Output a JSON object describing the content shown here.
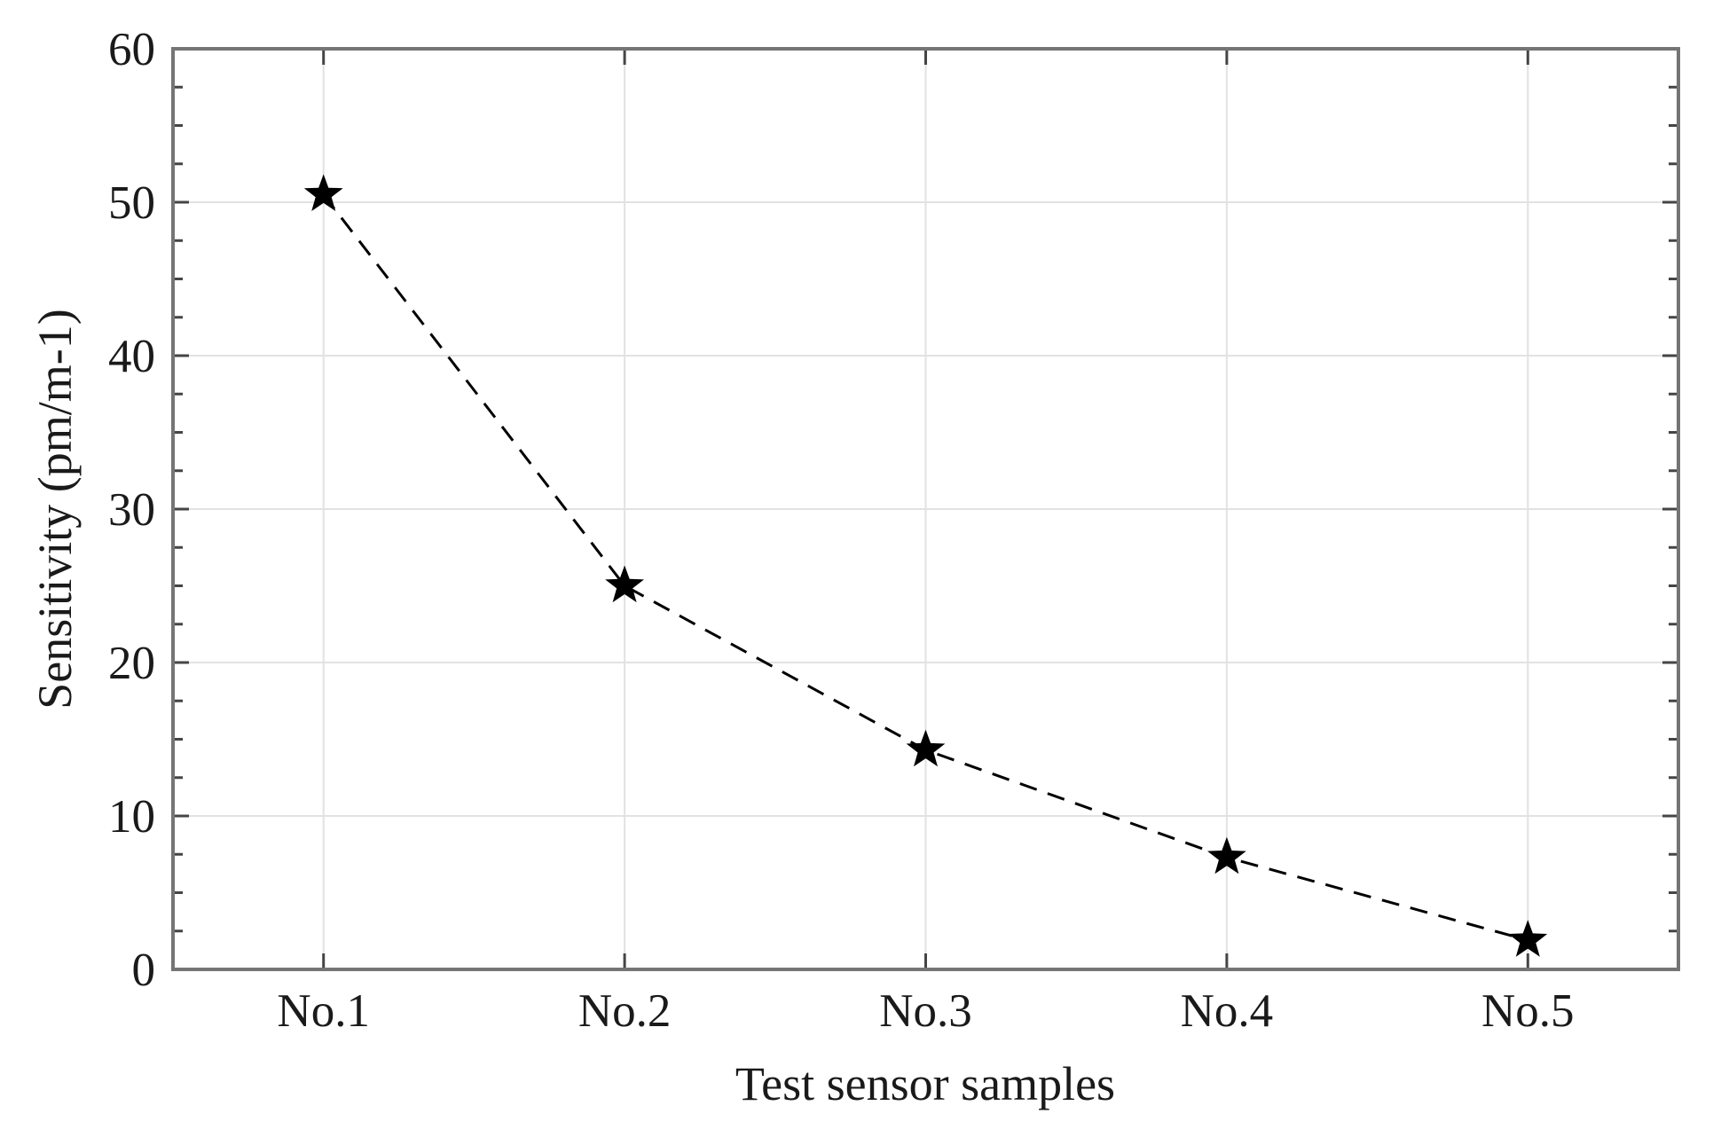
{
  "figure": {
    "background": "#ffffff"
  },
  "chart_data": {
    "type": "line",
    "title": "",
    "xlabel": "Test sensor samples",
    "ylabel": "Sensitivity (pm/m-1)",
    "categories": [
      "No.1",
      "No.2",
      "No.3",
      "No.4",
      "No.5"
    ],
    "series": [
      {
        "name": "Sensitivity",
        "values": [
          50.5,
          25.0,
          14.3,
          7.3,
          1.9
        ]
      }
    ],
    "ylim": [
      0,
      60
    ],
    "yticks": [
      0,
      10,
      20,
      30,
      40,
      50,
      60
    ],
    "ytick_labels": [
      "0",
      "10",
      "20",
      "30",
      "40",
      "50",
      "60"
    ],
    "y_minor_step": 2.5,
    "grid": true,
    "legend": "none",
    "line_style": "dashed",
    "marker": "star",
    "colors": {
      "line": "#000000",
      "marker": "#000000",
      "grid": "#e2e2e2",
      "axis_box": "#757575",
      "tick": "#454545",
      "text": "#1a1a1a"
    }
  }
}
